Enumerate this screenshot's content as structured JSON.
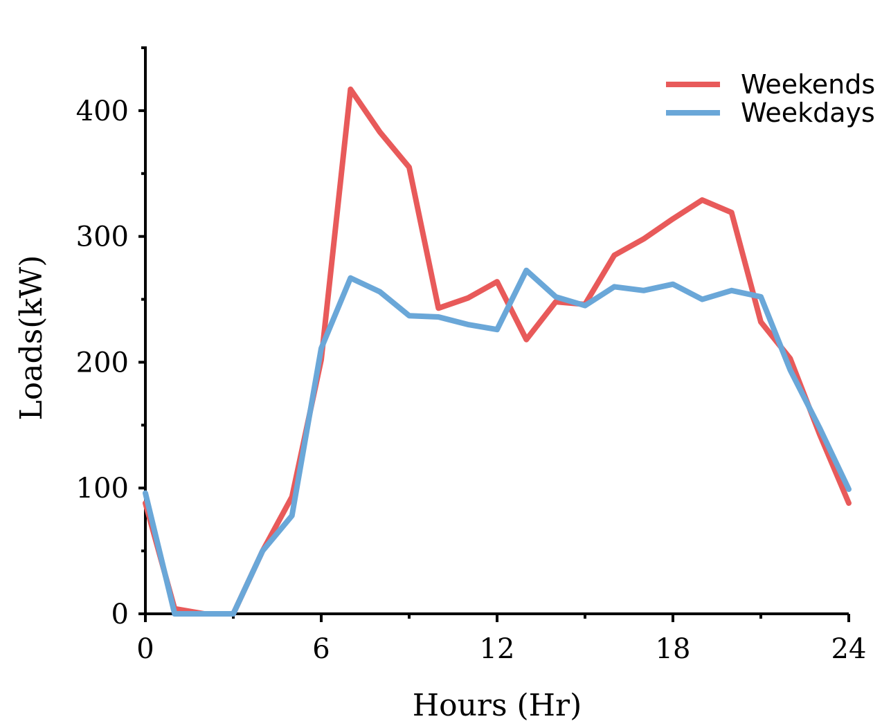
{
  "chart_data": {
    "type": "line",
    "xlabel": "Hours (Hr)",
    "ylabel": "Loads(kW)",
    "xlim": [
      0,
      24
    ],
    "ylim": [
      0,
      450
    ],
    "xticks": [
      "0",
      "6",
      "12",
      "18",
      "24"
    ],
    "yticks": [
      "0",
      "100",
      "200",
      "300",
      "400"
    ],
    "grid": false,
    "legend_position": "top-right",
    "x": [
      0,
      1,
      2,
      3,
      4,
      5,
      6,
      7,
      8,
      9,
      10,
      11,
      12,
      13,
      14,
      15,
      16,
      17,
      18,
      19,
      20,
      21,
      22,
      23,
      24
    ],
    "series": [
      {
        "name": "Weekends",
        "color": "#e85a5a",
        "values": [
          88,
          4,
          0,
          0,
          50,
          93,
          202,
          417,
          383,
          355,
          243,
          251,
          264,
          218,
          248,
          246,
          285,
          298,
          314,
          329,
          319,
          232,
          203,
          143,
          88
        ]
      },
      {
        "name": "Weekdays",
        "color": "#6aa7d8",
        "values": [
          96,
          0,
          0,
          0,
          50,
          78,
          211,
          267,
          256,
          237,
          236,
          230,
          226,
          273,
          252,
          245,
          260,
          257,
          262,
          250,
          257,
          252,
          194,
          148,
          99
        ]
      }
    ]
  }
}
